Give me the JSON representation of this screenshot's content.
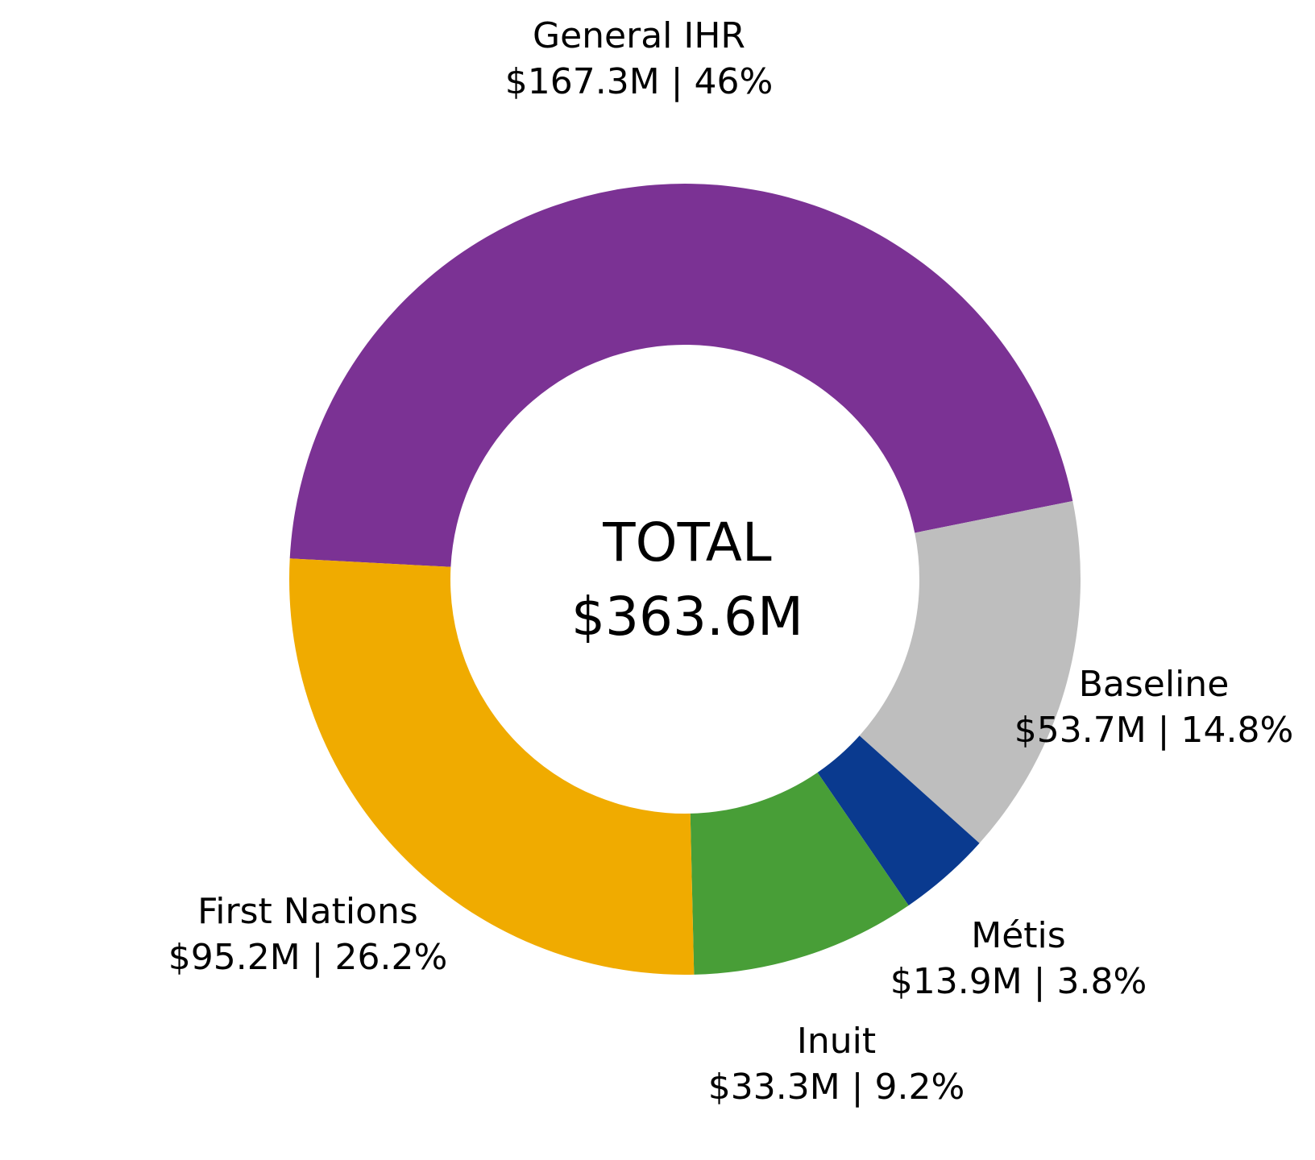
{
  "chart_data": {
    "type": "pie",
    "variant": "donut",
    "center_label": {
      "title": "TOTAL",
      "value": "$363.6M"
    },
    "total_value_musd": 363.6,
    "segments": [
      {
        "label": "General IHR",
        "value_musd": 167.3,
        "pct": 46.0,
        "value_text": "$167.3M | 46%",
        "color": "#7B3294"
      },
      {
        "label": "Baseline",
        "value_musd": 53.7,
        "pct": 14.8,
        "value_text": "$53.7M | 14.8%",
        "color": "#BEBEBE"
      },
      {
        "label": "Métis",
        "value_musd": 13.9,
        "pct": 3.8,
        "value_text": "$13.9M | 3.8%",
        "color": "#0A3A8F"
      },
      {
        "label": "Inuit",
        "value_musd": 33.3,
        "pct": 9.2,
        "value_text": "$33.3M | 9.2%",
        "color": "#489E37"
      },
      {
        "label": "First Nations",
        "value_musd": 95.2,
        "pct": 26.2,
        "value_text": "$95.2M | 26.2%",
        "color": "#F0AB00"
      }
    ],
    "layout": {
      "start_angle_deg": 177,
      "clockwise": true,
      "legend": "none",
      "labels": "outside",
      "background": "#ffffff"
    }
  }
}
